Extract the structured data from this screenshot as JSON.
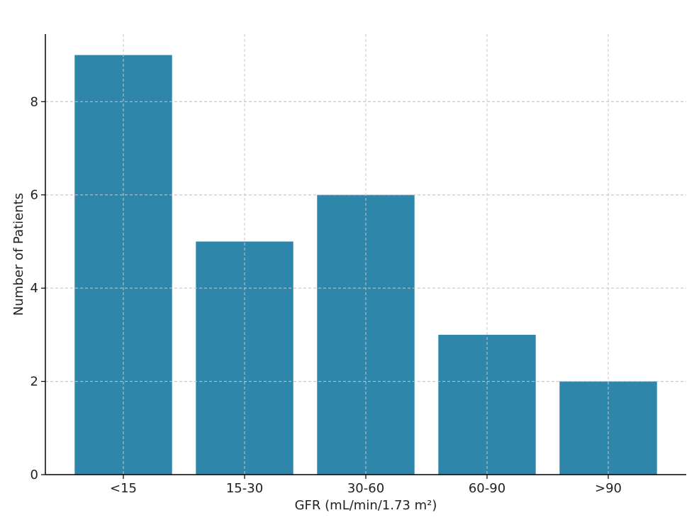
{
  "chart_data": {
    "type": "bar",
    "title": "",
    "xlabel": "GFR (mL/min/1.73 m²)",
    "ylabel": "Number of Patients",
    "categories": [
      "<15",
      "15-30",
      "30-60",
      "60-90",
      ">90"
    ],
    "values": [
      9,
      5,
      6,
      3,
      2
    ],
    "ylim": [
      0,
      9.45
    ],
    "yticks": [
      "0",
      "2",
      "4",
      "6",
      "8"
    ],
    "grid": true,
    "bar_color": "#2e86ab"
  }
}
